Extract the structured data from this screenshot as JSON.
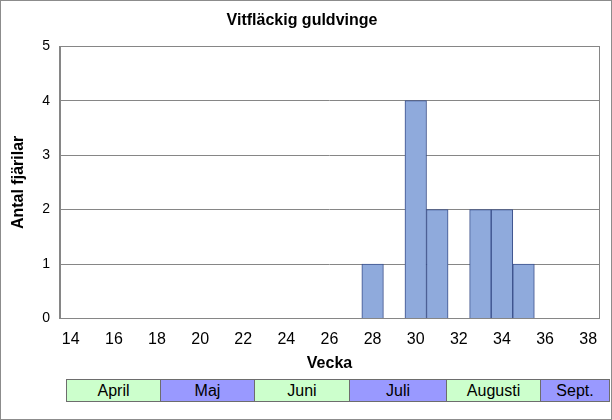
{
  "chart_data": {
    "type": "bar",
    "title": "Vitfläckig guldvinge",
    "x_label": "Vecka",
    "y_label": "Antal fjärilar",
    "x": [
      28,
      30,
      31,
      33,
      34,
      35
    ],
    "values": [
      1,
      4,
      2,
      2,
      2,
      1
    ],
    "color": "#8faadc",
    "xlim": [
      13.5,
      38.5
    ],
    "xticks": [
      14,
      16,
      18,
      20,
      22,
      24,
      26,
      28,
      30,
      32,
      34,
      36,
      38
    ],
    "ylim": [
      0,
      5
    ],
    "yticks": [
      0,
      1,
      2,
      3,
      4,
      5
    ],
    "grid": true,
    "month_band": [
      {
        "label": "April",
        "color": "#ccffcc"
      },
      {
        "label": "Maj",
        "color": "#9999ff"
      },
      {
        "label": "Juni",
        "color": "#ccffcc"
      },
      {
        "label": "Juli",
        "color": "#9999ff"
      },
      {
        "label": "Augusti",
        "color": "#ccffcc"
      },
      {
        "label": "Sept.",
        "color": "#9999ff"
      }
    ]
  }
}
